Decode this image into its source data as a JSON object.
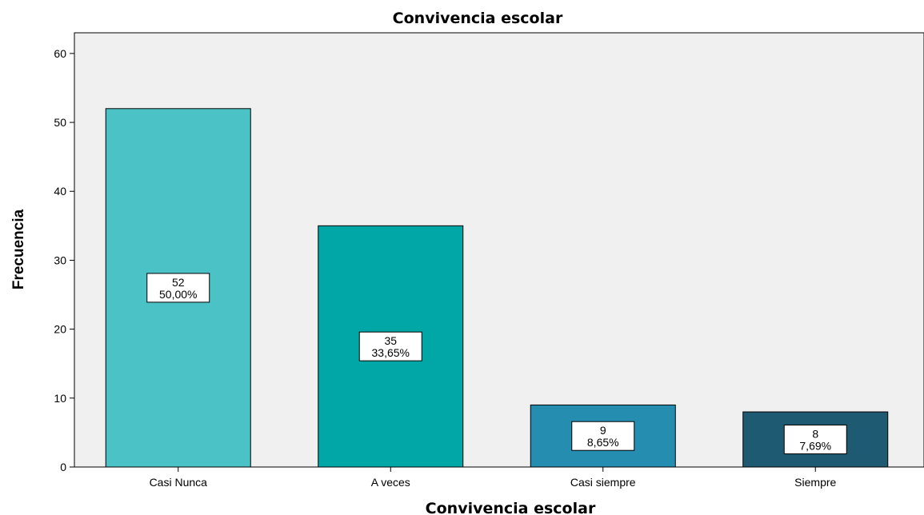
{
  "chart_data": {
    "type": "bar",
    "title": "Convivencia escolar",
    "xlabel": "Convivencia escolar",
    "ylabel": "Frecuencia",
    "categories": [
      "Casi Nunca",
      "A veces",
      "Casi siempre",
      "Siempre"
    ],
    "values": [
      52,
      35,
      9,
      8
    ],
    "percent_labels": [
      "50,00%",
      "33,65%",
      "8,65%",
      "7,69%"
    ],
    "colors": [
      "#4bc2c6",
      "#00a7a6",
      "#258db0",
      "#1e5a72"
    ],
    "ylim": [
      0,
      63
    ],
    "yticks": [
      0,
      10,
      20,
      30,
      40,
      50,
      60
    ],
    "grid": false,
    "plot_background": "#f0f0f0"
  }
}
